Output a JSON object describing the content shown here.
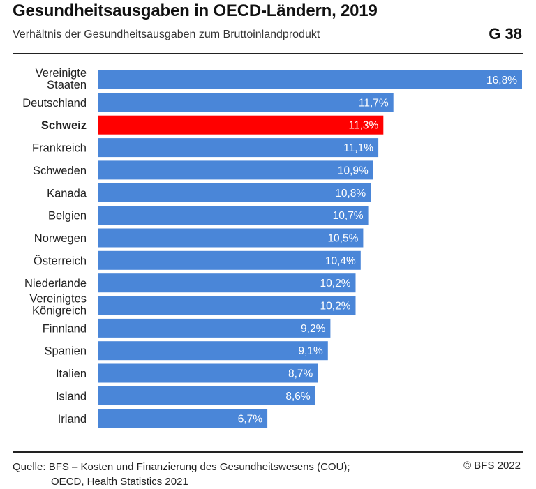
{
  "header": {
    "title": "Gesundheitsausgaben in OECD-Ländern, 2019",
    "subtitle": "Verhältnis der Gesundheitsausgaben zum Bruttoinlandprodukt",
    "figure_id": "G 38"
  },
  "footer": {
    "source_line1": "Quelle: BFS – Kosten und Finanzierung des Gesundheitswesens (COU);",
    "source_line2": "OECD, Health Statistics 2021",
    "copyright": "© BFS 2022"
  },
  "colors": {
    "bar": "#4a86d8",
    "highlight": "#ff0000",
    "label_on_bar": "#ffffff"
  },
  "chart_data": {
    "type": "bar",
    "orientation": "horizontal",
    "title": "Gesundheitsausgaben in OECD-Ländern, 2019",
    "subtitle": "Verhältnis der Gesundheitsausgaben zum Bruttoinlandprodukt",
    "unit": "%",
    "xlim": [
      0,
      16.8
    ],
    "grid": false,
    "highlight_category": "Schweiz",
    "categories": [
      [
        "Vereinigte",
        "Staaten"
      ],
      [
        "Deutschland"
      ],
      [
        "Schweiz"
      ],
      [
        "Frankreich"
      ],
      [
        "Schweden"
      ],
      [
        "Kanada"
      ],
      [
        "Belgien"
      ],
      [
        "Norwegen"
      ],
      [
        "Österreich"
      ],
      [
        "Niederlande"
      ],
      [
        "Vereinigtes",
        "Königreich"
      ],
      [
        "Finnland"
      ],
      [
        "Spanien"
      ],
      [
        "Italien"
      ],
      [
        "Island"
      ],
      [
        "Irland"
      ]
    ],
    "values": [
      16.8,
      11.7,
      11.3,
      11.1,
      10.9,
      10.8,
      10.7,
      10.5,
      10.4,
      10.2,
      10.2,
      9.2,
      9.1,
      8.7,
      8.6,
      6.7
    ],
    "value_labels": [
      "16,8%",
      "11,7%",
      "11,3%",
      "11,1%",
      "10,9%",
      "10,8%",
      "10,7%",
      "10,5%",
      "10,4%",
      "10,2%",
      "10,2%",
      "9,2%",
      "9,1%",
      "8,7%",
      "8,6%",
      "6,7%"
    ]
  }
}
